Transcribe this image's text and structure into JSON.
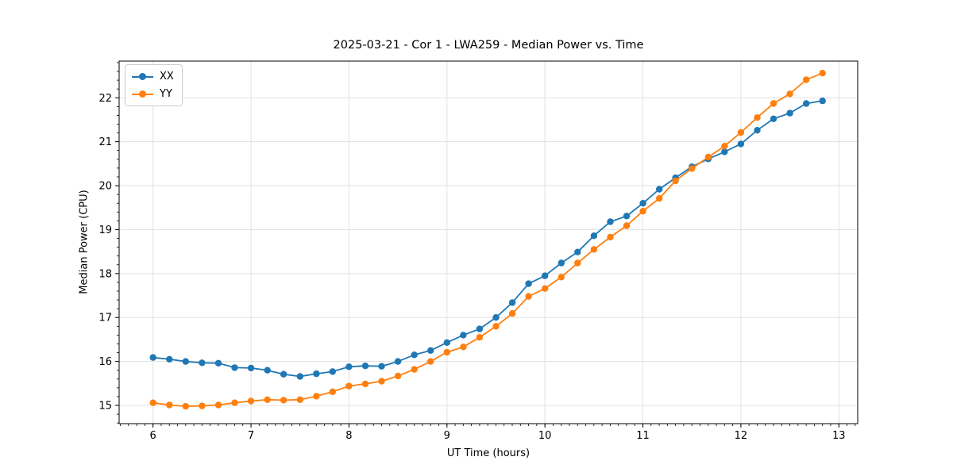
{
  "chart_data": {
    "type": "line",
    "title": "2025-03-21 - Cor 1 - LWA259 - Median Power vs. Time",
    "xlabel": "UT Time (hours)",
    "ylabel": "Median Power (CPU)",
    "xlim": [
      5.654,
      13.192
    ],
    "ylim": [
      14.585,
      22.835
    ],
    "x_major_ticks": [
      6,
      7,
      8,
      9,
      10,
      11,
      12,
      13
    ],
    "y_major_ticks": [
      15,
      16,
      17,
      18,
      19,
      20,
      21,
      22
    ],
    "x_minor_step": 0.08333,
    "y_minor_step": 0.2,
    "grid": true,
    "grid_color": "#e0e0e0",
    "legend_position": "upper-left",
    "x": [
      6.0,
      6.167,
      6.333,
      6.5,
      6.667,
      6.833,
      7.0,
      7.167,
      7.333,
      7.5,
      7.667,
      7.833,
      8.0,
      8.167,
      8.333,
      8.5,
      8.667,
      8.833,
      9.0,
      9.167,
      9.333,
      9.5,
      9.667,
      9.833,
      10.0,
      10.167,
      10.333,
      10.5,
      10.667,
      10.833,
      11.0,
      11.167,
      11.333,
      11.5,
      11.667,
      11.833,
      12.0,
      12.167,
      12.333,
      12.5,
      12.667,
      12.833
    ],
    "series": [
      {
        "name": "XX",
        "color": "#1f77b4",
        "values": [
          16.09,
          16.05,
          16.0,
          15.97,
          15.96,
          15.86,
          15.85,
          15.8,
          15.71,
          15.66,
          15.72,
          15.77,
          15.88,
          15.9,
          15.89,
          16.0,
          16.15,
          16.25,
          16.43,
          16.6,
          16.74,
          17.0,
          17.34,
          17.77,
          17.95,
          18.24,
          18.49,
          18.86,
          19.18,
          19.31,
          19.6,
          19.92,
          20.18,
          20.43,
          20.61,
          20.77,
          20.95,
          21.26,
          21.52,
          21.65,
          21.87,
          21.93
        ]
      },
      {
        "name": "YY",
        "color": "#ff7f0e",
        "values": [
          15.06,
          15.01,
          14.98,
          14.99,
          15.01,
          15.06,
          15.1,
          15.13,
          15.12,
          15.13,
          15.21,
          15.31,
          15.44,
          15.49,
          15.55,
          15.67,
          15.82,
          16.0,
          16.21,
          16.33,
          16.55,
          16.8,
          17.09,
          17.48,
          17.66,
          17.92,
          18.24,
          18.55,
          18.83,
          19.09,
          19.42,
          19.71,
          20.11,
          20.39,
          20.65,
          20.9,
          21.21,
          21.55,
          21.87,
          22.09,
          22.41,
          22.56
        ]
      }
    ]
  }
}
